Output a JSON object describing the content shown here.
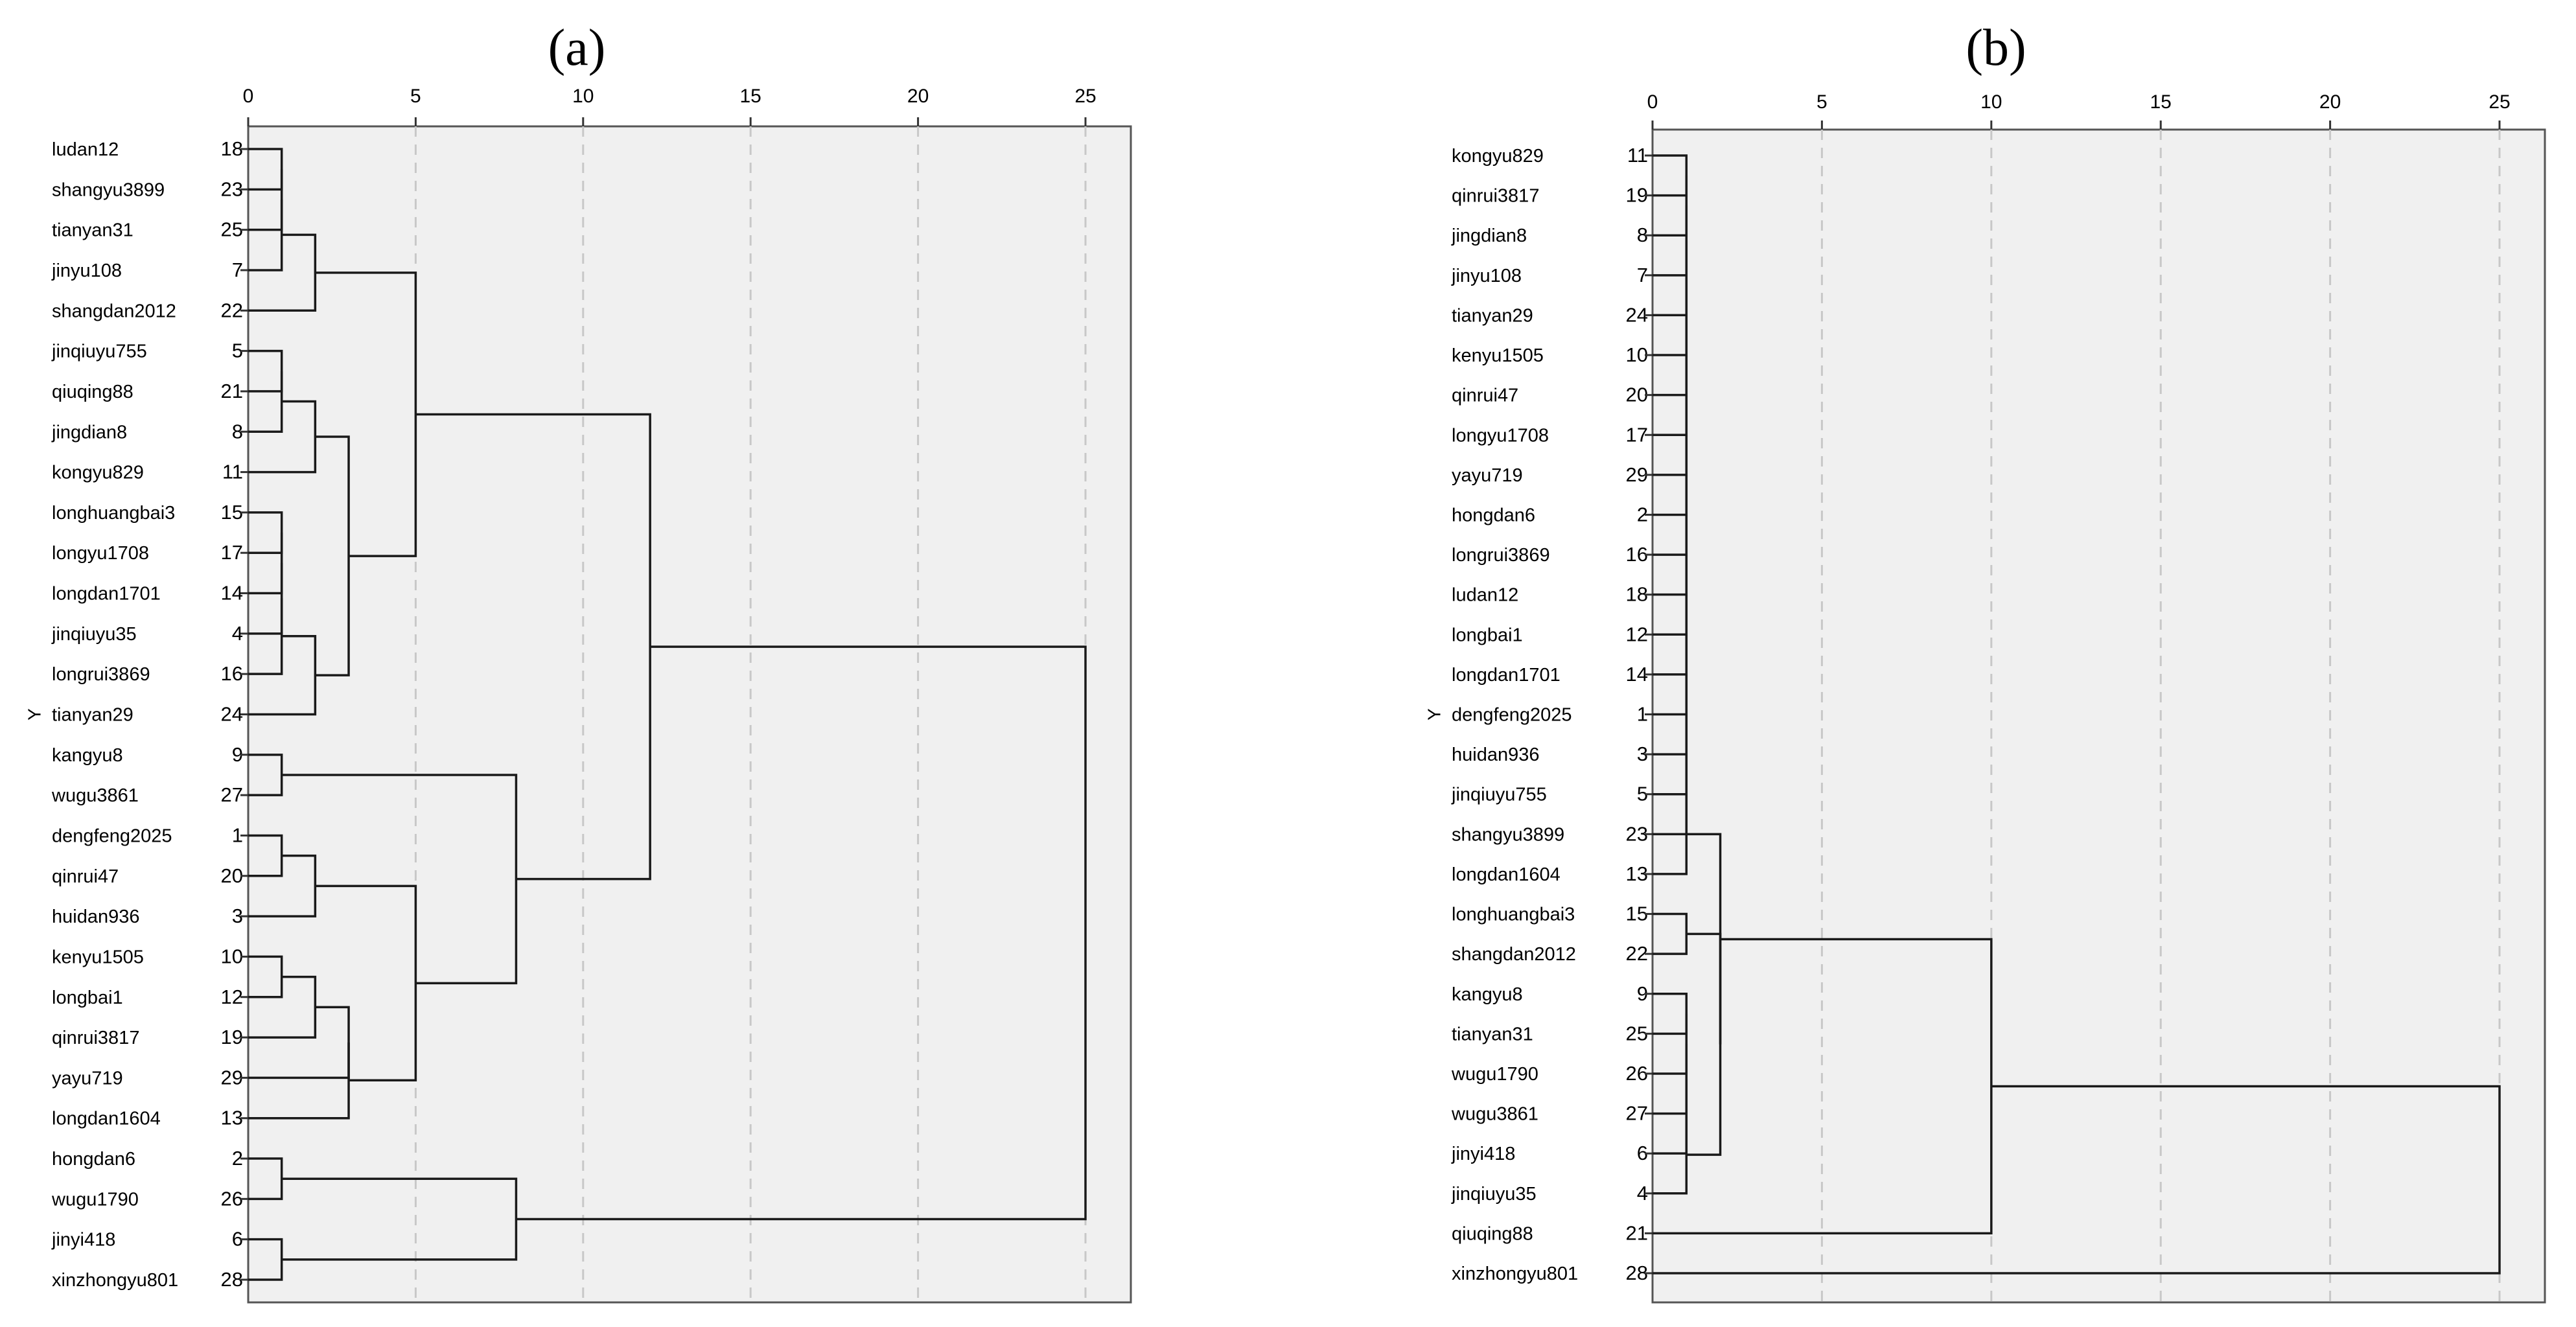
{
  "chart_data": [
    {
      "type": "dendrogram",
      "panel_label": "(a)",
      "ylabel": "Y",
      "xlim": [
        0,
        25
      ],
      "x_ticks": [
        0,
        5,
        10,
        15,
        20,
        25
      ],
      "grid": "vertical dashed",
      "leaves": [
        {
          "label": "ludan12",
          "id": "18"
        },
        {
          "label": "shangyu3899",
          "id": "23"
        },
        {
          "label": "tianyan31",
          "id": "25"
        },
        {
          "label": "jinyu108",
          "id": "7"
        },
        {
          "label": "shangdan2012",
          "id": "22"
        },
        {
          "label": "jinqiuyu755",
          "id": "5"
        },
        {
          "label": "qiuqing88",
          "id": "21"
        },
        {
          "label": "jingdian8",
          "id": "8"
        },
        {
          "label": "kongyu829",
          "id": "11"
        },
        {
          "label": "longhuangbai3",
          "id": "15"
        },
        {
          "label": "longyu1708",
          "id": "17"
        },
        {
          "label": "longdan1701",
          "id": "14"
        },
        {
          "label": "jinqiuyu35",
          "id": "4"
        },
        {
          "label": "longrui3869",
          "id": "16"
        },
        {
          "label": "tianyan29",
          "id": "24"
        },
        {
          "label": "kangyu8",
          "id": "9"
        },
        {
          "label": "wugu3861",
          "id": "27"
        },
        {
          "label": "dengfeng2025",
          "id": "1"
        },
        {
          "label": "qinrui47",
          "id": "20"
        },
        {
          "label": "huidan936",
          "id": "3"
        },
        {
          "label": "kenyu1505",
          "id": "10"
        },
        {
          "label": "longbai1",
          "id": "12"
        },
        {
          "label": "qinrui3817",
          "id": "19"
        },
        {
          "label": "yayu719",
          "id": "29"
        },
        {
          "label": "longdan1604",
          "id": "13"
        },
        {
          "label": "hongdan6",
          "id": "2"
        },
        {
          "label": "wugu1790",
          "id": "26"
        },
        {
          "label": "jinyi418",
          "id": "6"
        },
        {
          "label": "xinzhongyu801",
          "id": "28"
        }
      ],
      "merges": [
        {
          "children": [
            0,
            1
          ],
          "height": 1
        },
        {
          "children": [
            29,
            2
          ],
          "height": 1
        },
        {
          "children": [
            30,
            3
          ],
          "height": 1
        },
        {
          "children": [
            31,
            4
          ],
          "height": 2
        },
        {
          "children": [
            5,
            6
          ],
          "height": 1
        },
        {
          "children": [
            33,
            7
          ],
          "height": 1
        },
        {
          "children": [
            34,
            8
          ],
          "height": 2
        },
        {
          "children": [
            9,
            10
          ],
          "height": 1
        },
        {
          "children": [
            36,
            11
          ],
          "height": 1
        },
        {
          "children": [
            37,
            12
          ],
          "height": 1
        },
        {
          "children": [
            38,
            13
          ],
          "height": 1
        },
        {
          "children": [
            39,
            14
          ],
          "height": 2
        },
        {
          "children": [
            35,
            40
          ],
          "height": 3
        },
        {
          "children": [
            32,
            41
          ],
          "height": 5
        },
        {
          "children": [
            15,
            16
          ],
          "height": 1
        },
        {
          "children": [
            17,
            18
          ],
          "height": 1
        },
        {
          "children": [
            44,
            19
          ],
          "height": 2
        },
        {
          "children": [
            20,
            21
          ],
          "height": 1
        },
        {
          "children": [
            46,
            22
          ],
          "height": 2
        },
        {
          "children": [
            23,
            47
          ],
          "height": 3
        },
        {
          "children": [
            48,
            24
          ],
          "height": 3
        },
        {
          "children": [
            45,
            49
          ],
          "height": 5
        },
        {
          "children": [
            43,
            50
          ],
          "height": 8
        },
        {
          "children": [
            42,
            51
          ],
          "height": 12
        },
        {
          "children": [
            25,
            26
          ],
          "height": 1
        },
        {
          "children": [
            27,
            28
          ],
          "height": 1
        },
        {
          "children": [
            53,
            54
          ],
          "height": 8
        },
        {
          "children": [
            52,
            55
          ],
          "height": 25
        }
      ]
    },
    {
      "type": "dendrogram",
      "panel_label": "(b)",
      "ylabel": "Y",
      "xlim": [
        0,
        25
      ],
      "x_ticks": [
        0,
        5,
        10,
        15,
        20,
        25
      ],
      "grid": "vertical dashed",
      "leaves": [
        {
          "label": "kongyu829",
          "id": "11"
        },
        {
          "label": "qinrui3817",
          "id": "19"
        },
        {
          "label": "jingdian8",
          "id": "8"
        },
        {
          "label": "jinyu108",
          "id": "7"
        },
        {
          "label": "tianyan29",
          "id": "24"
        },
        {
          "label": "kenyu1505",
          "id": "10"
        },
        {
          "label": "qinrui47",
          "id": "20"
        },
        {
          "label": "longyu1708",
          "id": "17"
        },
        {
          "label": "yayu719",
          "id": "29"
        },
        {
          "label": "hongdan6",
          "id": "2"
        },
        {
          "label": "longrui3869",
          "id": "16"
        },
        {
          "label": "ludan12",
          "id": "18"
        },
        {
          "label": "longbai1",
          "id": "12"
        },
        {
          "label": "longdan1701",
          "id": "14"
        },
        {
          "label": "dengfeng2025",
          "id": "1"
        },
        {
          "label": "huidan936",
          "id": "3"
        },
        {
          "label": "jinqiuyu755",
          "id": "5"
        },
        {
          "label": "shangyu3899",
          "id": "23"
        },
        {
          "label": "longdan1604",
          "id": "13"
        },
        {
          "label": "longhuangbai3",
          "id": "15"
        },
        {
          "label": "shangdan2012",
          "id": "22"
        },
        {
          "label": "kangyu8",
          "id": "9"
        },
        {
          "label": "tianyan31",
          "id": "25"
        },
        {
          "label": "wugu1790",
          "id": "26"
        },
        {
          "label": "wugu3861",
          "id": "27"
        },
        {
          "label": "jinyi418",
          "id": "6"
        },
        {
          "label": "jinqiuyu35",
          "id": "4"
        },
        {
          "label": "qiuqing88",
          "id": "21"
        },
        {
          "label": "xinzhongyu801",
          "id": "28"
        }
      ],
      "merges": [
        {
          "children": [
            0,
            1
          ],
          "height": 1
        },
        {
          "children": [
            29,
            2
          ],
          "height": 1
        },
        {
          "children": [
            30,
            3
          ],
          "height": 1
        },
        {
          "children": [
            31,
            4
          ],
          "height": 1
        },
        {
          "children": [
            32,
            5
          ],
          "height": 1
        },
        {
          "children": [
            33,
            6
          ],
          "height": 1
        },
        {
          "children": [
            34,
            7
          ],
          "height": 1
        },
        {
          "children": [
            35,
            8
          ],
          "height": 1
        },
        {
          "children": [
            36,
            9
          ],
          "height": 1
        },
        {
          "children": [
            37,
            10
          ],
          "height": 1
        },
        {
          "children": [
            38,
            11
          ],
          "height": 1
        },
        {
          "children": [
            39,
            12
          ],
          "height": 1
        },
        {
          "children": [
            40,
            13
          ],
          "height": 1
        },
        {
          "children": [
            41,
            14
          ],
          "height": 1
        },
        {
          "children": [
            42,
            15
          ],
          "height": 1
        },
        {
          "children": [
            43,
            16
          ],
          "height": 1
        },
        {
          "children": [
            44,
            17
          ],
          "height": 1
        },
        {
          "children": [
            45,
            18
          ],
          "height": 1
        },
        {
          "children": [
            19,
            20
          ],
          "height": 1
        },
        {
          "children": [
            21,
            22
          ],
          "height": 1
        },
        {
          "children": [
            48,
            23
          ],
          "height": 1
        },
        {
          "children": [
            49,
            24
          ],
          "height": 1
        },
        {
          "children": [
            50,
            25
          ],
          "height": 1
        },
        {
          "children": [
            51,
            26
          ],
          "height": 1
        },
        {
          "children": [
            47,
            52
          ],
          "height": 2
        },
        {
          "children": [
            46,
            53
          ],
          "height": 2
        },
        {
          "children": [
            54,
            27
          ],
          "height": 10
        },
        {
          "children": [
            55,
            28
          ],
          "height": 25
        }
      ]
    }
  ]
}
